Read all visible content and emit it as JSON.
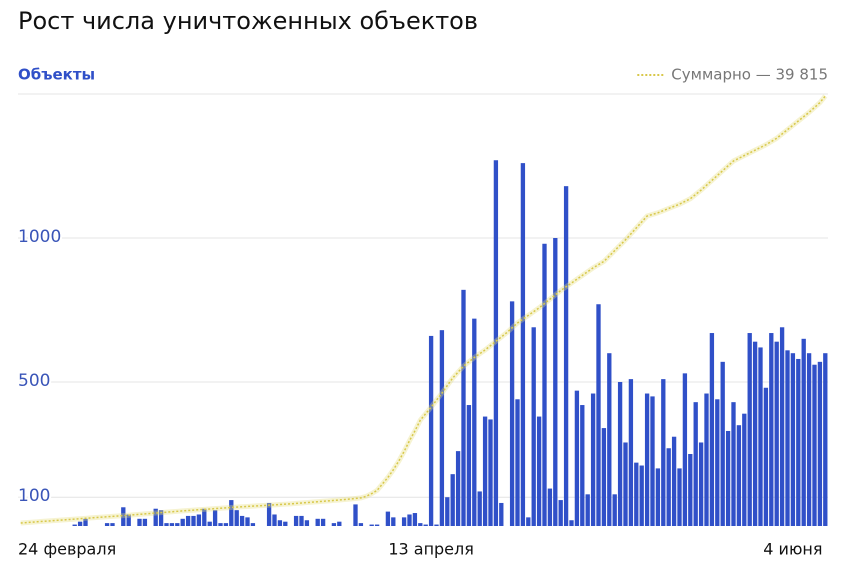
{
  "chart_data": {
    "type": "bar",
    "title": "Рост числа уничтоженных объектов",
    "categories": [
      "24 февраля",
      null,
      null,
      null,
      null,
      null,
      null,
      null,
      null,
      null,
      null,
      null,
      null,
      null,
      null,
      null,
      null,
      null,
      null,
      null,
      null,
      null,
      null,
      null,
      null,
      null,
      null,
      null,
      null,
      null,
      null,
      null,
      null,
      null,
      null,
      null,
      null,
      null,
      null,
      null,
      null,
      null,
      null,
      null,
      null,
      null,
      null,
      null,
      null,
      null,
      null,
      null,
      null,
      null,
      null,
      null,
      null,
      null,
      null,
      null,
      null,
      null,
      null,
      null,
      null,
      null,
      null,
      null,
      null,
      null,
      null,
      null,
      null,
      null,
      null,
      null,
      "13 апреля",
      null,
      null,
      null,
      null,
      null,
      null,
      null,
      null,
      null,
      null,
      null,
      null,
      null,
      null,
      null,
      null,
      null,
      null,
      null,
      null,
      null,
      null,
      null,
      null,
      null,
      null,
      null,
      null,
      null,
      null,
      null,
      null,
      null,
      null,
      null,
      null,
      null,
      null,
      null,
      null,
      null,
      null,
      null,
      null,
      null,
      null,
      null,
      null,
      null,
      null,
      null,
      null,
      null,
      null,
      null,
      null,
      null,
      null,
      null,
      null,
      null,
      null,
      null,
      null,
      null,
      null,
      "4 июня",
      null,
      null,
      null,
      null,
      null,
      null
    ],
    "series": [
      {
        "name": "Объекты",
        "color": "#3050c8",
        "values": [
          0,
          0,
          0,
          0,
          0,
          0,
          0,
          0,
          0,
          0,
          5,
          15,
          25,
          0,
          0,
          0,
          10,
          10,
          0,
          65,
          40,
          0,
          25,
          25,
          0,
          60,
          55,
          10,
          10,
          10,
          25,
          35,
          35,
          40,
          60,
          15,
          55,
          10,
          10,
          90,
          55,
          35,
          30,
          10,
          0,
          0,
          80,
          40,
          20,
          15,
          0,
          35,
          35,
          20,
          0,
          25,
          25,
          0,
          10,
          15,
          0,
          0,
          75,
          10,
          0,
          5,
          5,
          0,
          50,
          30,
          0,
          30,
          40,
          45,
          10,
          5,
          660,
          5,
          680,
          100,
          180,
          260,
          820,
          420,
          720,
          120,
          380,
          370,
          1270,
          80,
          0,
          780,
          440,
          1260,
          30,
          690,
          380,
          980,
          130,
          1000,
          90,
          1180,
          20,
          470,
          420,
          110,
          460,
          770,
          340,
          600,
          110,
          500,
          290,
          510,
          220,
          210,
          460,
          450,
          200,
          510,
          270,
          310,
          200,
          530,
          250,
          430,
          290,
          460,
          670,
          440,
          570,
          330,
          430,
          350,
          390,
          670,
          640,
          620,
          480,
          670,
          640,
          690,
          610,
          600,
          580,
          650,
          600,
          560,
          570,
          600
        ]
      },
      {
        "name": "Суммарно — 39 815",
        "color": "#e6dc7a",
        "axis": "y2",
        "values": [
          280,
          316,
          352,
          388,
          424,
          460,
          496,
          532,
          568,
          604,
          640,
          676,
          712,
          748,
          784,
          820,
          856,
          892,
          928,
          964,
          1000,
          1040,
          1080,
          1120,
          1160,
          1200,
          1240,
          1280,
          1320,
          1360,
          1400,
          1435,
          1470,
          1505,
          1540,
          1575,
          1610,
          1645,
          1680,
          1715,
          1750,
          1780,
          1810,
          1840,
          1870,
          1900,
          1930,
          1960,
          1990,
          2020,
          2050,
          2090,
          2130,
          2170,
          2210,
          2250,
          2290,
          2330,
          2370,
          2410,
          2450,
          2500,
          2550,
          2600,
          2750,
          3000,
          3300,
          3900,
          4500,
          5200,
          6000,
          6900,
          7900,
          8800,
          9800,
          10400,
          11000,
          11650,
          12300,
          13000,
          13700,
          14250,
          14800,
          15200,
          15600,
          15950,
          16300,
          16700,
          17100,
          17500,
          17900,
          18350,
          18800,
          19150,
          19500,
          19850,
          20200,
          20600,
          21000,
          21400,
          21800,
          22150,
          22500,
          22850,
          23200,
          23550,
          23900,
          24200,
          24500,
          25000,
          25500,
          26000,
          26500,
          27050,
          27600,
          28150,
          28700,
          28850,
          29000,
          29200,
          29400,
          29600,
          29800,
          30050,
          30300,
          30700,
          31100,
          31550,
          32000,
          32450,
          32900,
          33350,
          33800,
          34050,
          34300,
          34550,
          34800,
          35050,
          35300,
          35600,
          35900,
          36300,
          36700,
          37100,
          37500,
          37900,
          38300,
          38750,
          39200,
          39815
        ]
      }
    ],
    "ylim": [
      0,
      1500
    ],
    "yticks": [
      100,
      500,
      1000
    ],
    "y2lim": [
      0,
      40000
    ],
    "grid": true
  }
}
